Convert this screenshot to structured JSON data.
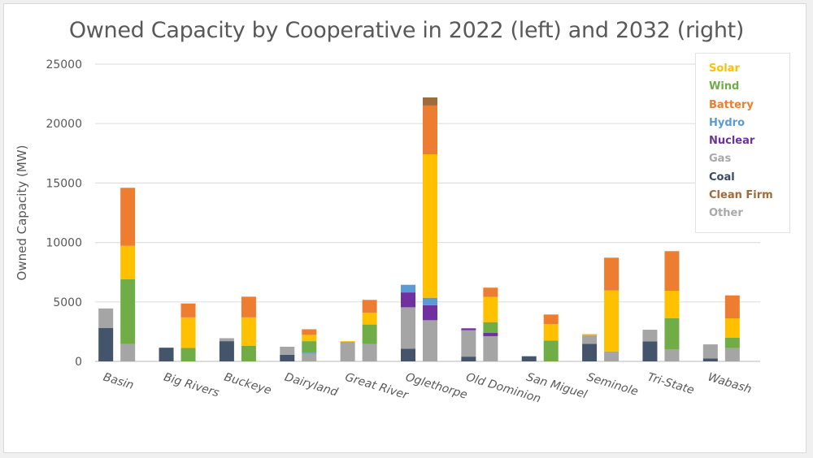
{
  "chart_data": {
    "type": "bar",
    "stacked": true,
    "title": "Owned Capacity by Cooperative in 2022 (left) and 2032 (right)",
    "xlabel": "",
    "ylabel": "Owned Capacity (MW)",
    "ylim": [
      0,
      25000
    ],
    "yticks": [
      0,
      5000,
      10000,
      15000,
      20000,
      25000
    ],
    "ytick_labels": [
      "0",
      "5000",
      "10000",
      "15000",
      "20000",
      "25000"
    ],
    "grid": true,
    "legend_position": "top-right",
    "categories": [
      "Basin",
      "Big Rivers",
      "Buckeye",
      "Dairyland",
      "Great River",
      "Oglethorpe",
      "Old Dominion",
      "San Miguel",
      "Seminole",
      "Tri-State",
      "Wabash"
    ],
    "years": [
      "2022",
      "2032"
    ],
    "stack_order": [
      "Coal",
      "Gas",
      "Other",
      "Nuclear",
      "Hydro",
      "Wind",
      "Solar",
      "Battery",
      "Clean Firm"
    ],
    "legend": [
      {
        "name": "Solar",
        "color": "#FFC000"
      },
      {
        "name": "Wind",
        "color": "#70AD47"
      },
      {
        "name": "Battery",
        "color": "#ED7D31"
      },
      {
        "name": "Hydro",
        "color": "#5B9BD5"
      },
      {
        "name": "Nuclear",
        "color": "#7030A0"
      },
      {
        "name": "Gas",
        "color": "#A5A5A5"
      },
      {
        "name": "Coal",
        "color": "#44546A"
      },
      {
        "name": "Clean Firm",
        "color": "#9E6B3A"
      },
      {
        "name": "Other",
        "color": "#A5A5A5"
      }
    ],
    "series": [
      {
        "name": "Coal",
        "values_2022": [
          2800,
          1150,
          1700,
          550,
          0,
          1070,
          400,
          430,
          1480,
          1680,
          250
        ],
        "values_2032": [
          0,
          0,
          0,
          0,
          0,
          0,
          0,
          0,
          0,
          0,
          0
        ]
      },
      {
        "name": "Gas",
        "values_2022": [
          1570,
          0,
          250,
          680,
          1640,
          3480,
          2220,
          0,
          730,
          980,
          1180
        ],
        "values_2032": [
          0,
          0,
          0,
          0,
          0,
          3460,
          2120,
          0,
          0,
          0,
          0
        ]
      },
      {
        "name": "Other",
        "values_2022": [
          80,
          0,
          0,
          0,
          0,
          0,
          0,
          0,
          0,
          0,
          0
        ],
        "values_2032": [
          1450,
          0,
          0,
          640,
          1450,
          0,
          0,
          0,
          840,
          1000,
          1110
        ]
      },
      {
        "name": "Nuclear",
        "values_2022": [
          0,
          0,
          0,
          0,
          0,
          1250,
          160,
          0,
          0,
          0,
          0
        ],
        "values_2032": [
          0,
          0,
          0,
          0,
          0,
          1270,
          270,
          0,
          0,
          0,
          0
        ]
      },
      {
        "name": "Hydro",
        "values_2022": [
          0,
          0,
          0,
          0,
          0,
          640,
          0,
          0,
          0,
          0,
          0
        ],
        "values_2032": [
          0,
          0,
          0,
          100,
          0,
          620,
          0,
          0,
          0,
          0,
          0
        ]
      },
      {
        "name": "Wind",
        "values_2022": [
          0,
          0,
          0,
          0,
          0,
          0,
          0,
          0,
          0,
          0,
          0
        ],
        "values_2032": [
          5450,
          1130,
          1320,
          960,
          1650,
          0,
          910,
          1750,
          0,
          2620,
          890
        ]
      },
      {
        "name": "Solar",
        "values_2022": [
          0,
          0,
          0,
          0,
          60,
          0,
          0,
          0,
          90,
          0,
          0
        ],
        "values_2032": [
          2820,
          2570,
          2380,
          530,
          1000,
          12070,
          2120,
          1390,
          5120,
          2320,
          1620
        ]
      },
      {
        "name": "Battery",
        "values_2022": [
          0,
          0,
          0,
          0,
          0,
          0,
          0,
          0,
          0,
          0,
          0
        ],
        "values_2032": [
          4880,
          1170,
          1740,
          470,
          1070,
          4100,
          780,
          800,
          2760,
          3330,
          1930
        ]
      },
      {
        "name": "Clean Firm",
        "values_2022": [
          0,
          0,
          0,
          0,
          0,
          0,
          0,
          0,
          0,
          0,
          0
        ],
        "values_2032": [
          0,
          0,
          0,
          0,
          0,
          680,
          0,
          0,
          0,
          0,
          0
        ]
      }
    ]
  }
}
